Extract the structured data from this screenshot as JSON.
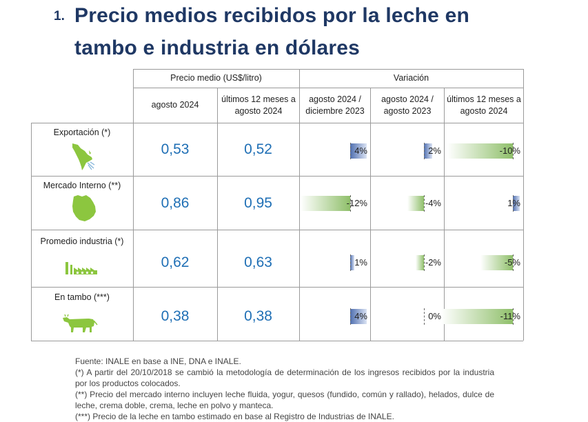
{
  "title": {
    "number": "1.",
    "line1": "Precio medios recibidos por la leche en",
    "line2": "tambo e industria en dólares"
  },
  "table": {
    "group_price": "Precio medio (US$/litro)",
    "group_var": "Variación",
    "col_headers": [
      "agosto 2024",
      "últimos 12 meses a agosto 2024",
      "agosto 2024 / diciembre 2023",
      "agosto 2024 / agosto 2023",
      "últimos 12 meses a agosto 2024"
    ],
    "rows": [
      {
        "label": "Exportación (*)",
        "icon": "south-america-map-icon",
        "price_aug": "0,53",
        "price_12m": "0,52",
        "var1": "4%",
        "var1_value": 4,
        "var2": "2%",
        "var2_value": 2,
        "var3": "-10%",
        "var3_value": -10
      },
      {
        "label": "Mercado Interno (**)",
        "icon": "uruguay-map-icon",
        "price_aug": "0,86",
        "price_12m": "0,95",
        "var1": "-12%",
        "var1_value": -12,
        "var2": "-4%",
        "var2_value": -4,
        "var3": "1%",
        "var3_value": 1
      },
      {
        "label": "Promedio industria (*)",
        "icon": "factory-icon",
        "price_aug": "0,62",
        "price_12m": "0,63",
        "var1": "1%",
        "var1_value": 1,
        "var2": "-2%",
        "var2_value": -2,
        "var3": "-5%",
        "var3_value": -5
      },
      {
        "label": "En tambo (***)",
        "icon": "cow-icon",
        "price_aug": "0,38",
        "price_12m": "0,38",
        "var1": "4%",
        "var1_value": 4,
        "var2": "0%",
        "var2_value": 0,
        "var3": "-11%",
        "var3_value": -11
      }
    ]
  },
  "colors": {
    "title": "#1f3864",
    "price": "#1f6fb5",
    "icon": "#8cc63f",
    "positive_bar": "#4f6fb0",
    "negative_bar": "#8fbf6a"
  },
  "notes": [
    "Fuente: INALE en base a INE, DNA e INALE.",
    "(*) A partir del 20/10/2018 se cambió la metodología de determinación de los ingresos recibidos por la industria por los productos colocados.",
    "(**) Precio del mercado interno incluyen leche fluida, yogur, quesos (fundido, común y rallado), helados, dulce de leche, crema doble, crema, leche en polvo y manteca.",
    "(***) Precio de la leche en tambo estimado en base al Registro de Industrias de INALE."
  ]
}
